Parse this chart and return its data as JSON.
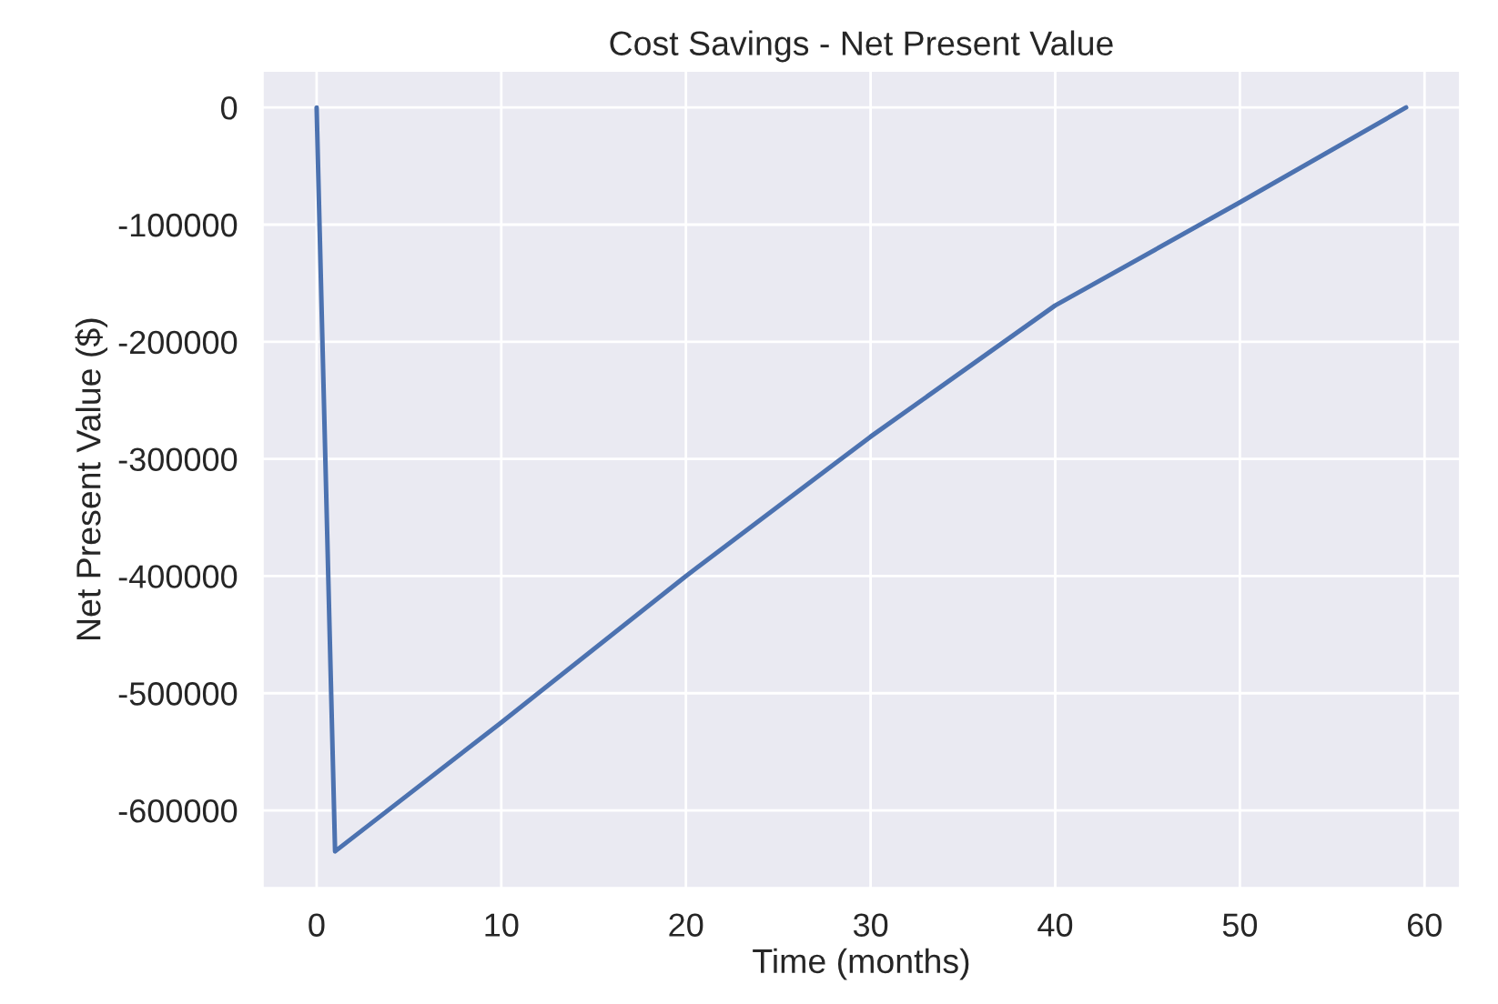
{
  "chart_data": {
    "type": "line",
    "title": "Cost Savings - Net Present Value",
    "xlabel": "Time (months)",
    "ylabel": "Net Present Value ($)",
    "x": [
      0,
      1,
      10,
      20,
      30,
      40,
      50,
      59
    ],
    "series": [
      {
        "color": "#4c72b0",
        "values": [
          0,
          -635000,
          -525000,
          -400000,
          -281000,
          -169000,
          -81000,
          0
        ]
      }
    ],
    "xlim": [
      -2.95,
      61.95
    ],
    "ylim": [
      -666750,
      31750
    ],
    "xticks": [
      0,
      10,
      20,
      30,
      40,
      50,
      60
    ],
    "yticks": [
      -600000,
      -500000,
      -400000,
      -300000,
      -200000,
      -100000,
      0
    ],
    "grid": true
  }
}
